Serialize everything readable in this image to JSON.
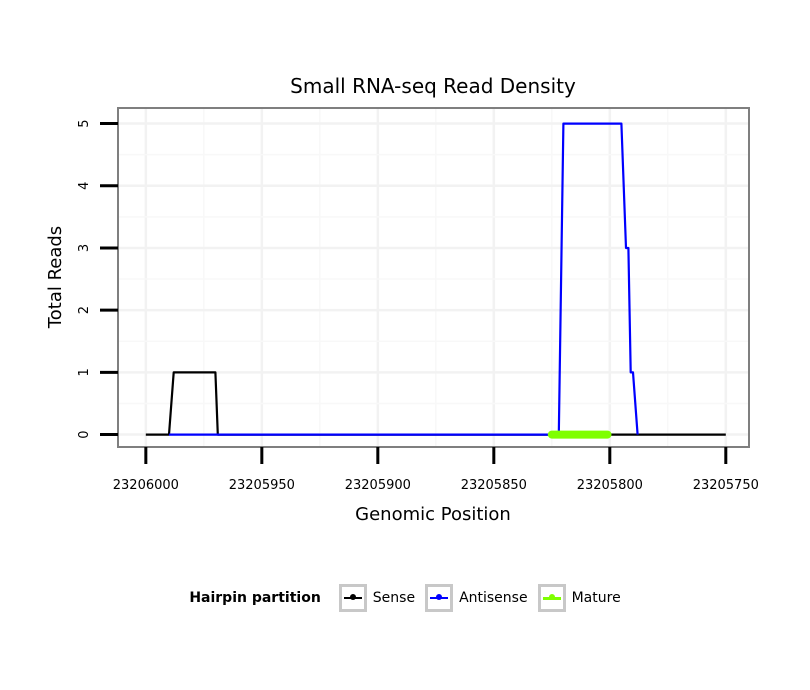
{
  "chart_data": {
    "type": "line",
    "title": "Small RNA-seq Read Density",
    "xlabel": "Genomic Position",
    "ylabel": "Total Reads",
    "xlim": [
      23206012,
      23205740
    ],
    "ylim": [
      -0.2,
      5.25
    ],
    "x_reversed": true,
    "x_ticks": [
      23206000,
      23205950,
      23205900,
      23205850,
      23205800,
      23205750
    ],
    "x_tick_labels": [
      "23206000",
      "23205950",
      "23205900",
      "23205850",
      "23205800",
      "23205750"
    ],
    "y_ticks": [
      0,
      1,
      2,
      3,
      4,
      5
    ],
    "y_tick_labels": [
      "0",
      "1",
      "2",
      "3",
      "4",
      "5"
    ],
    "grid": true,
    "legend_position": "bottom",
    "legend_title": "Hairpin partition",
    "series": [
      {
        "name": "Sense",
        "color": "#000000",
        "x": [
          23206000,
          23205990,
          23205988,
          23205970,
          23205969,
          23205750
        ],
        "y": [
          0,
          0,
          1,
          1,
          0,
          0
        ]
      },
      {
        "name": "Antisense",
        "color": "#0000ff",
        "x": [
          23205990,
          23205970,
          23205969,
          23205822,
          23205820,
          23205795,
          23205793,
          23205792,
          23205791,
          23205790,
          23205788
        ],
        "y": [
          0,
          0,
          0,
          0,
          5,
          5,
          3,
          3,
          1,
          1,
          0
        ]
      },
      {
        "name": "Mature",
        "color": "#7fff00",
        "x": [
          23205825,
          23205801
        ],
        "y": [
          0,
          0
        ]
      }
    ]
  }
}
